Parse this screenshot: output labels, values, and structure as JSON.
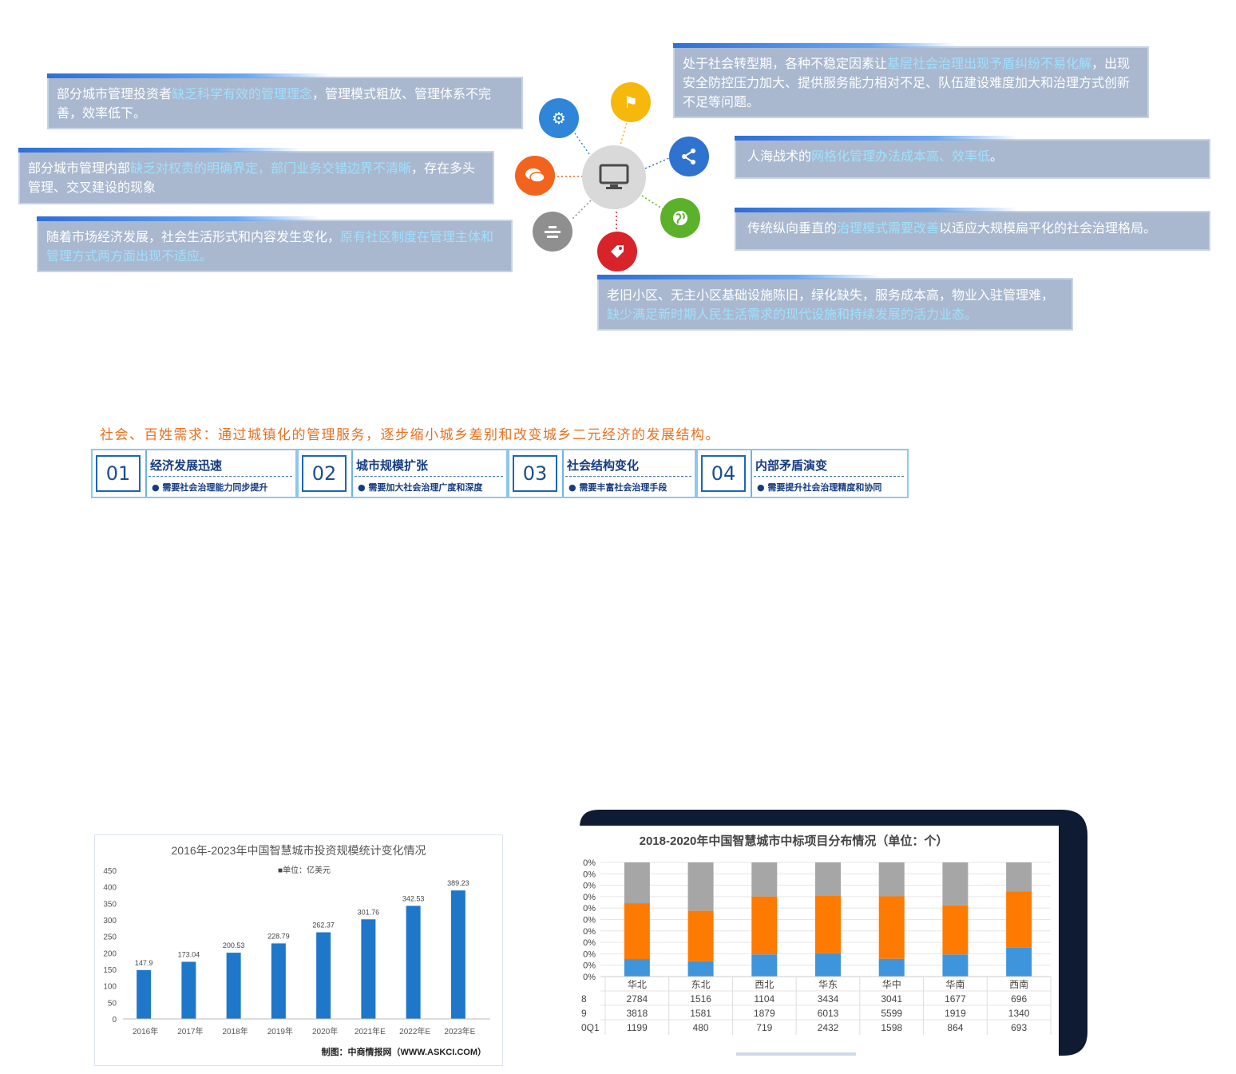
{
  "mind_map": {
    "left_boxes": [
      {
        "pre": "部分城市管理投资者",
        "hl": "缺乏科学有效的管理理念",
        "post": "，管理模式粗放、管理体系不完善，效率低下。"
      },
      {
        "pre": "部分城市管理内部",
        "hl": "缺乏对权责的明确界定，部门业务交错边界不清晰",
        "post": "，存在多头管理、交叉建设的现象"
      },
      {
        "pre": "随着市场经济发展，社会生活形式和内容发生变化，",
        "hl": "原有社区制度在管理主体和管理方式两方面出现不适应。",
        "post": ""
      }
    ],
    "right_boxes": [
      {
        "pre": "处于社会转型期，各种不稳定因素让",
        "hl": "基层社会治理出现予盾纠纷不易化解",
        "post": "，出现安全防控压力加大、提供服务能力相对不足、队伍建设难度加大和治理方式创新不足等问题。"
      },
      {
        "pre": "人海战术的",
        "hl": "网格化管理办法成本高、效率低",
        "post": "。"
      },
      {
        "pre": "传统纵向垂直的",
        "hl": "治理模式需要改善",
        "post": "以适应大规模扁平化的社会治理格局。"
      },
      {
        "pre": "老旧小区、无主小区基础设施陈旧，绿化缺失，服务成本高，物业入驻管理难，",
        "hl": "缺少满足新时期人民生活需求的现代设施和持续发展的活力业态。",
        "post": ""
      }
    ],
    "colors": {
      "gear": "#2f86d8",
      "flag": "#f6b80a",
      "share": "#2f72cf",
      "chat": "#f2641d",
      "globe": "#5bb22a",
      "menu": "#8f8f8f",
      "tag": "#d9232a",
      "hub": "#d7d7d7"
    }
  },
  "demand": {
    "intro": "社会、百姓需求：通过城镇化的管理服务，逐步缩小城乡差别和改变城乡二元经济的发展结构。",
    "steps": [
      {
        "num": "01",
        "title": "经济发展迅速",
        "sub": "●  需要社会治理能力同步提升"
      },
      {
        "num": "02",
        "title": "城市规模扩张",
        "sub": "●  需要加大社会治理广度和深度"
      },
      {
        "num": "03",
        "title": "社会结构变化",
        "sub": "●  需要丰富社会治理手段"
      },
      {
        "num": "04",
        "title": "内部矛盾演变",
        "sub": "●  需要提升社会治理精度和协同"
      }
    ]
  },
  "chart_data": [
    {
      "type": "bar",
      "title": "2016年-2023年中国智慧城市投资规模统计变化情况",
      "legend": "■单位：亿美元",
      "source": "制图：中商情报网（WWW.ASKCI.COM）",
      "categories": [
        "2016年",
        "2017年",
        "2018年",
        "2019年",
        "2020年",
        "2021年E",
        "2022年E",
        "2023年E"
      ],
      "values": [
        147.9,
        173.04,
        200.53,
        228.79,
        262.37,
        301.76,
        342.53,
        389.23
      ],
      "labels": [
        "147.9",
        "173.04",
        "200.53",
        "228.79",
        "262.37",
        "301.76",
        "342.53",
        "389.23"
      ],
      "ylim": [
        0,
        450
      ],
      "yticks": [
        "0",
        "50",
        "100",
        "150",
        "200",
        "250",
        "300",
        "350",
        "400",
        "450"
      ],
      "color": "#1f77c9",
      "grid": false
    },
    {
      "type": "bar",
      "stacked": "percent",
      "title": "2018-2020年中国智慧城市中标项目分布情况（单位：个）",
      "categories": [
        "华北",
        "东北",
        "西北",
        "华东",
        "华中",
        "华南",
        "西南"
      ],
      "yticks": [
        "0%",
        "0%",
        "0%",
        "0%",
        "0%",
        "0%",
        "0%",
        "0%",
        "0%",
        "0%",
        "0%"
      ],
      "row_labels": [
        "8",
        "9",
        "0Q1"
      ],
      "series": [
        {
          "values": [
            1199,
            480,
            719,
            2432,
            1598,
            864,
            693
          ],
          "color": "#3f95dc"
        },
        {
          "values": [
            3818,
            1581,
            1879,
            6013,
            5599,
            1919,
            1340
          ],
          "color": "#ff7a00"
        },
        {
          "values": [
            2784,
            1516,
            1104,
            3434,
            3041,
            1677,
            696
          ],
          "color": "#a6a6a6"
        }
      ],
      "table": [
        [
          "2784",
          "1516",
          "1104",
          "3434",
          "3041",
          "1677",
          "696"
        ],
        [
          "3818",
          "1581",
          "1879",
          "6013",
          "5599",
          "1919",
          "1340"
        ],
        [
          "1199",
          "480",
          "719",
          "2432",
          "1598",
          "864",
          "693"
        ]
      ]
    }
  ]
}
